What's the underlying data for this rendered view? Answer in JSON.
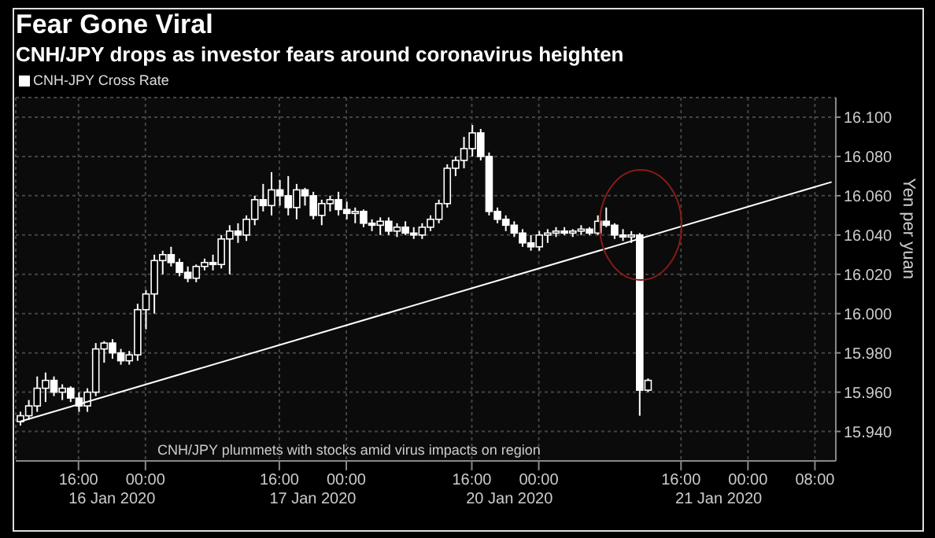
{
  "chart_data": {
    "type": "candlestick",
    "title": "Fear Gone Viral",
    "subtitle": "CNH/JPY drops as investor fears around coronavirus heighten",
    "ylabel": "Yen per yuan",
    "annotations": [
      "16 Jan 2020",
      "17 Jan 2020",
      "20 Jan 2020",
      "21 Jan 2020",
      "CNH/JPY plummets with stocks amid virus impacts on region"
    ],
    "categories": [
      null,
      null,
      null,
      null,
      null,
      null,
      null,
      "16:00",
      null,
      null,
      null,
      null,
      null,
      null,
      null,
      "00:00",
      null,
      null,
      null,
      null,
      null,
      null,
      null,
      null,
      null,
      null,
      null,
      null,
      null,
      null,
      null,
      "16:00",
      null,
      null,
      null,
      null,
      null,
      null,
      null,
      "00:00",
      null,
      null,
      null,
      null,
      null,
      null,
      null,
      null,
      null,
      null,
      null,
      null,
      null,
      null,
      "16:00",
      null,
      null,
      null,
      null,
      null,
      null,
      null,
      "00:00",
      null,
      null,
      null,
      null,
      null,
      null,
      null,
      null,
      null,
      null,
      null,
      null,
      null,
      null,
      null,
      null,
      "16:00",
      null,
      null,
      null,
      null,
      null,
      null,
      null,
      "00:00",
      null,
      null,
      null,
      null,
      null,
      null,
      null,
      "08:00",
      null,
      null
    ],
    "series": [
      {
        "type": "candlestick",
        "name": "CNH-JPY Cross Rate",
        "color": "#ffffff",
        "ohlc": [
          [
            15.945,
            15.95,
            15.943,
            15.948
          ],
          [
            15.948,
            15.956,
            15.946,
            15.953
          ],
          [
            15.953,
            15.968,
            15.95,
            15.962
          ],
          [
            15.962,
            15.97,
            15.955,
            15.966
          ],
          [
            15.966,
            15.968,
            15.958,
            15.96
          ],
          [
            15.96,
            15.964,
            15.956,
            15.962
          ],
          [
            15.962,
            15.963,
            15.955,
            15.957
          ],
          [
            15.957,
            15.96,
            15.95,
            15.953
          ],
          [
            15.953,
            15.962,
            15.95,
            15.96
          ],
          [
            15.96,
            15.985,
            15.958,
            15.982
          ],
          [
            15.982,
            15.986,
            15.975,
            15.985
          ],
          [
            15.985,
            15.987,
            15.977,
            15.98
          ],
          [
            15.98,
            15.982,
            15.974,
            15.976
          ],
          [
            15.976,
            15.981,
            15.974,
            15.979
          ],
          [
            15.979,
            16.005,
            15.976,
            16.002
          ],
          [
            16.002,
            16.012,
            15.992,
            16.01
          ],
          [
            16.01,
            16.03,
            16.0,
            16.027
          ],
          [
            16.027,
            16.032,
            16.02,
            16.03
          ],
          [
            16.03,
            16.034,
            16.024,
            16.026
          ],
          [
            16.026,
            16.028,
            16.019,
            16.021
          ],
          [
            16.021,
            16.024,
            16.016,
            16.018
          ],
          [
            16.018,
            16.025,
            16.016,
            16.024
          ],
          [
            16.024,
            16.028,
            16.022,
            16.026
          ],
          [
            16.026,
            16.03,
            16.022,
            16.025
          ],
          [
            16.025,
            16.04,
            16.023,
            16.038
          ],
          [
            16.038,
            16.045,
            16.02,
            16.042
          ],
          [
            16.042,
            16.046,
            16.036,
            16.04
          ],
          [
            16.04,
            16.05,
            16.037,
            16.048
          ],
          [
            16.048,
            16.06,
            16.045,
            16.058
          ],
          [
            16.058,
            16.066,
            16.052,
            16.055
          ],
          [
            16.055,
            16.072,
            16.05,
            16.063
          ],
          [
            16.063,
            16.068,
            16.055,
            16.06
          ],
          [
            16.06,
            16.07,
            16.05,
            16.054
          ],
          [
            16.054,
            16.066,
            16.048,
            16.063
          ],
          [
            16.063,
            16.064,
            16.055,
            16.06
          ],
          [
            16.06,
            16.062,
            16.048,
            16.05
          ],
          [
            16.05,
            16.058,
            16.045,
            16.056
          ],
          [
            16.056,
            16.06,
            16.052,
            16.058
          ],
          [
            16.058,
            16.062,
            16.05,
            16.053
          ],
          [
            16.053,
            16.057,
            16.048,
            16.051
          ],
          [
            16.051,
            16.054,
            16.046,
            16.052
          ],
          [
            16.052,
            16.053,
            16.044,
            16.046
          ],
          [
            16.046,
            16.048,
            16.042,
            16.045
          ],
          [
            16.045,
            16.049,
            16.04,
            16.047
          ],
          [
            16.047,
            16.049,
            16.04,
            16.042
          ],
          [
            16.042,
            16.046,
            16.039,
            16.044
          ],
          [
            16.044,
            16.047,
            16.04,
            16.041
          ],
          [
            16.041,
            16.044,
            16.038,
            16.04
          ],
          [
            16.04,
            16.046,
            16.038,
            16.044
          ],
          [
            16.044,
            16.05,
            16.042,
            16.048
          ],
          [
            16.048,
            16.058,
            16.046,
            16.056
          ],
          [
            16.056,
            16.076,
            16.054,
            16.074
          ],
          [
            16.074,
            16.08,
            16.07,
            16.078
          ],
          [
            16.078,
            16.09,
            16.074,
            16.084
          ],
          [
            16.084,
            16.096,
            16.08,
            16.092
          ],
          [
            16.092,
            16.094,
            16.078,
            16.08
          ],
          [
            16.08,
            16.082,
            16.05,
            16.052
          ],
          [
            16.052,
            16.054,
            16.046,
            16.048
          ],
          [
            16.048,
            16.05,
            16.042,
            16.045
          ],
          [
            16.045,
            16.047,
            16.039,
            16.041
          ],
          [
            16.041,
            16.043,
            16.034,
            16.036
          ],
          [
            16.036,
            16.04,
            16.032,
            16.034
          ],
          [
            16.034,
            16.042,
            16.032,
            16.04
          ],
          [
            16.04,
            16.043,
            16.036,
            16.041
          ],
          [
            16.041,
            16.044,
            16.039,
            16.042
          ],
          [
            16.042,
            16.044,
            16.04,
            16.041
          ],
          [
            16.041,
            16.043,
            16.039,
            16.042
          ],
          [
            16.042,
            16.045,
            16.04,
            16.043
          ],
          [
            16.043,
            16.044,
            16.04,
            16.041
          ],
          [
            16.041,
            16.05,
            16.04,
            16.047
          ],
          [
            16.047,
            16.054,
            16.044,
            16.045
          ],
          [
            16.045,
            16.046,
            16.038,
            16.04
          ],
          [
            16.04,
            16.043,
            16.037,
            16.039
          ],
          [
            16.039,
            16.042,
            16.036,
            16.04
          ],
          [
            16.04,
            16.041,
            15.948,
            15.961
          ],
          [
            15.961,
            15.967,
            15.96,
            15.966
          ],
          null,
          null,
          null,
          null,
          null,
          null,
          null,
          null,
          null,
          null,
          null,
          null,
          null,
          null,
          null,
          null,
          null,
          null,
          null,
          null,
          null,
          null
        ]
      },
      {
        "type": "line",
        "color": "#ffffff",
        "values": [
          15.945,
          null,
          null,
          null,
          null,
          null,
          null,
          null,
          null,
          null,
          null,
          null,
          null,
          null,
          null,
          null,
          null,
          null,
          null,
          null,
          null,
          null,
          null,
          null,
          null,
          null,
          null,
          null,
          null,
          null,
          null,
          null,
          null,
          null,
          null,
          null,
          null,
          null,
          null,
          null,
          null,
          null,
          null,
          null,
          null,
          null,
          null,
          null,
          null,
          null,
          null,
          null,
          null,
          null,
          null,
          null,
          null,
          null,
          null,
          null,
          null,
          null,
          null,
          null,
          null,
          null,
          null,
          null,
          null,
          null,
          null,
          null,
          null,
          null,
          null,
          null,
          null,
          null,
          null,
          null,
          null,
          null,
          null,
          null,
          null,
          null,
          null,
          null,
          null,
          null,
          null,
          null,
          null,
          null,
          null,
          null,
          null,
          16.067
        ]
      }
    ],
    "ylim": [
      15.925,
      16.11
    ],
    "yticks": [
      {
        "value": 15.94,
        "label": "15.940"
      },
      {
        "value": 15.96,
        "label": "15.960"
      },
      {
        "value": 15.98,
        "label": "15.980"
      },
      {
        "value": 16.0,
        "label": "16.000"
      },
      {
        "value": 16.02,
        "label": "16.020"
      },
      {
        "value": 16.04,
        "label": "16.040"
      },
      {
        "value": 16.06,
        "label": "16.060"
      },
      {
        "value": 16.08,
        "label": "16.080"
      },
      {
        "value": 16.1,
        "label": "16.100"
      }
    ],
    "grid": true,
    "legend": "top left",
    "line_style": "solid",
    "marker": "none"
  }
}
